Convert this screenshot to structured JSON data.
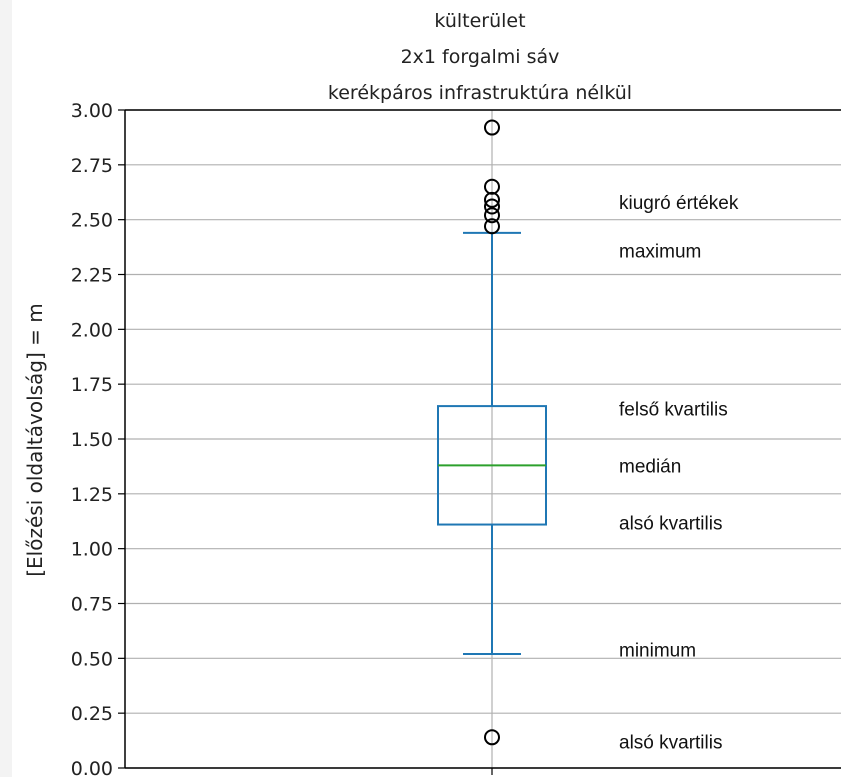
{
  "chart_data": {
    "type": "box",
    "title": [
      "külterület",
      "2x1 forgalmi sáv",
      "kerékpáros infrastruktúra nélkül"
    ],
    "ylabel": "[Előzési oldaltávolság] = m",
    "xlabel": "",
    "ylim": [
      0,
      3.0
    ],
    "yticks": [
      0.0,
      0.25,
      0.5,
      0.75,
      1.0,
      1.25,
      1.5,
      1.75,
      2.0,
      2.25,
      2.5,
      2.75,
      3.0
    ],
    "ytick_labels": [
      "0.00",
      "0.25",
      "0.50",
      "0.75",
      "1.00",
      "1.25",
      "1.50",
      "1.75",
      "2.00",
      "2.25",
      "2.50",
      "2.75",
      "3.00"
    ],
    "grid": true,
    "box": {
      "whisker_low": 0.52,
      "q1": 1.11,
      "median": 1.38,
      "q3": 1.65,
      "whisker_high": 2.44,
      "outliers": [
        0.14,
        2.47,
        2.52,
        2.56,
        2.59,
        2.65,
        2.92
      ]
    },
    "colors": {
      "box": "#1f77b4",
      "median": "#2ca02c",
      "grid": "#b0b0b0",
      "axis": "#000000",
      "outlier": "#000000"
    },
    "annotations": [
      {
        "text": "kiugró értékek",
        "y": 2.58
      },
      {
        "text": "maximum",
        "y": 2.36
      },
      {
        "text": "felső kvartilis",
        "y": 1.64
      },
      {
        "text": "medián",
        "y": 1.38
      },
      {
        "text": "alsó kvartilis",
        "y": 1.12
      },
      {
        "text": "minimum",
        "y": 0.54
      },
      {
        "text": "alsó kvartilis",
        "y": 0.12
      }
    ]
  }
}
